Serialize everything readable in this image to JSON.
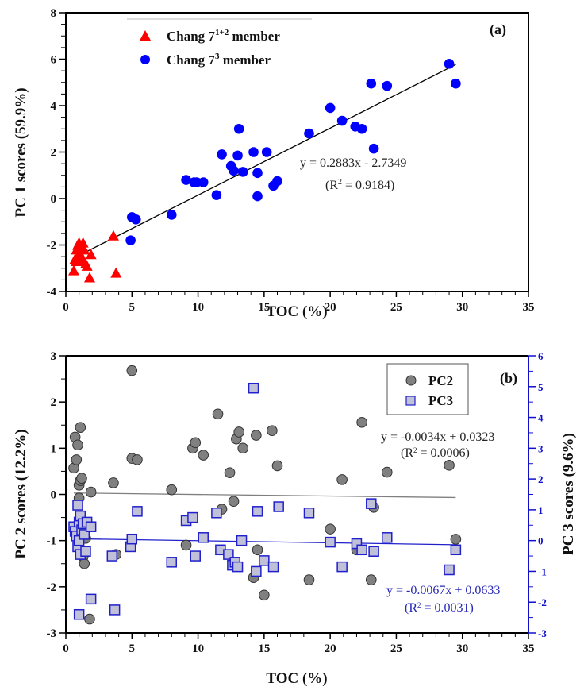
{
  "chart_data": [
    {
      "type": "scatter",
      "panel_label": "(a)",
      "xlabel": "TOC (%)",
      "ylabel": "PC 1 scores (59.9%)",
      "xlim": [
        0,
        35
      ],
      "ylim": [
        -4,
        8
      ],
      "xticks": [
        0,
        5,
        10,
        15,
        20,
        25,
        30,
        35
      ],
      "yticks": [
        -4,
        -2,
        0,
        2,
        4,
        6,
        8
      ],
      "grid": false,
      "legend_position": "top-left",
      "series": [
        {
          "name": "Chang 7",
          "name_sup": "1+2",
          "name_suffix": " member",
          "marker": "triangle",
          "color": "#ff0000",
          "points": [
            [
              0.6,
              -3.1
            ],
            [
              0.7,
              -2.6
            ],
            [
              0.8,
              -2.2
            ],
            [
              0.9,
              -2.0
            ],
            [
              1.0,
              -1.9
            ],
            [
              1.0,
              -2.4
            ],
            [
              1.1,
              -2.1
            ],
            [
              1.2,
              -2.5
            ],
            [
              1.3,
              -1.9
            ],
            [
              1.4,
              -2.2
            ],
            [
              1.5,
              -2.8
            ],
            [
              1.6,
              -2.9
            ],
            [
              1.8,
              -3.4
            ],
            [
              1.9,
              -2.4
            ],
            [
              3.6,
              -1.6
            ],
            [
              3.8,
              -3.2
            ],
            [
              0.8,
              -2.7
            ],
            [
              1.2,
              -2.7
            ]
          ]
        },
        {
          "name": "Chang 7",
          "name_sup": "3",
          "name_suffix": " member",
          "marker": "circle",
          "color": "#0000ff",
          "points": [
            [
              4.9,
              -1.8
            ],
            [
              5.0,
              -0.8
            ],
            [
              5.3,
              -0.9
            ],
            [
              8.0,
              -0.7
            ],
            [
              9.1,
              0.8
            ],
            [
              9.7,
              0.7
            ],
            [
              9.9,
              0.7
            ],
            [
              10.4,
              0.7
            ],
            [
              11.4,
              0.15
            ],
            [
              11.8,
              1.9
            ],
            [
              12.5,
              1.4
            ],
            [
              12.7,
              1.2
            ],
            [
              13.0,
              1.85
            ],
            [
              13.1,
              3.0
            ],
            [
              13.4,
              1.15
            ],
            [
              14.2,
              2.0
            ],
            [
              14.5,
              1.1
            ],
            [
              14.5,
              0.1
            ],
            [
              15.2,
              2.0
            ],
            [
              15.7,
              0.55
            ],
            [
              16.0,
              0.75
            ],
            [
              18.4,
              2.8
            ],
            [
              20.0,
              3.9
            ],
            [
              20.9,
              3.35
            ],
            [
              21.9,
              3.1
            ],
            [
              22.4,
              3.0
            ],
            [
              23.1,
              4.95
            ],
            [
              23.3,
              2.15
            ],
            [
              24.3,
              4.85
            ],
            [
              29.0,
              5.8
            ],
            [
              29.5,
              4.95
            ]
          ]
        }
      ],
      "trendline": {
        "slope": 0.2883,
        "intercept": -2.7349,
        "x_range": [
          0.6,
          29.5
        ],
        "color": "#000000"
      },
      "annotations": {
        "equation": "y = 0.2883x - 2.7349",
        "r2_prefix": "(R",
        "r2_sup": "2",
        "r2_suffix": " = 0.9184)"
      }
    },
    {
      "type": "scatter",
      "panel_label": "(b)",
      "xlabel": "TOC (%)",
      "ylabel": "PC 2 scores (12.2%)",
      "ylabel_right": "PC 3 scores (9.6%)",
      "xlim": [
        0,
        35
      ],
      "ylim": [
        -3,
        3
      ],
      "ylim_right": [
        -3,
        6
      ],
      "xticks": [
        0,
        5,
        10,
        15,
        20,
        25,
        30,
        35
      ],
      "yticks": [
        -3,
        -2,
        -1,
        0,
        1,
        2,
        3
      ],
      "yticks_right": [
        -3,
        -2,
        -1,
        0,
        1,
        2,
        3,
        4,
        5,
        6
      ],
      "grid": false,
      "legend_position": "top-right",
      "series": [
        {
          "name": "PC2",
          "axis": "left",
          "marker": "circle",
          "color": "#808080",
          "edge_color": "#333333",
          "points": [
            [
              0.6,
              0.57
            ],
            [
              0.7,
              1.24
            ],
            [
              0.8,
              0.75
            ],
            [
              0.9,
              1.07
            ],
            [
              1.0,
              0.2
            ],
            [
              1.0,
              -0.08
            ],
            [
              1.1,
              1.45
            ],
            [
              1.1,
              0.3
            ],
            [
              1.2,
              0.35
            ],
            [
              1.3,
              -1.35
            ],
            [
              1.4,
              -1.5
            ],
            [
              1.5,
              -0.95
            ],
            [
              1.8,
              -2.7
            ],
            [
              1.9,
              0.05
            ],
            [
              3.6,
              0.25
            ],
            [
              3.8,
              -1.3
            ],
            [
              5.0,
              2.68
            ],
            [
              5.0,
              0.78
            ],
            [
              5.4,
              0.75
            ],
            [
              8.0,
              0.1
            ],
            [
              9.1,
              -1.1
            ],
            [
              9.6,
              1.0
            ],
            [
              9.8,
              1.12
            ],
            [
              10.4,
              0.85
            ],
            [
              11.5,
              1.74
            ],
            [
              11.8,
              -0.32
            ],
            [
              12.4,
              0.47
            ],
            [
              12.7,
              -0.15
            ],
            [
              12.9,
              1.2
            ],
            [
              13.1,
              1.35
            ],
            [
              13.4,
              1.0
            ],
            [
              14.2,
              -1.8
            ],
            [
              14.4,
              1.28
            ],
            [
              14.5,
              -1.2
            ],
            [
              15.0,
              -2.18
            ],
            [
              15.6,
              1.38
            ],
            [
              16.0,
              0.62
            ],
            [
              18.4,
              -1.85
            ],
            [
              20.0,
              -0.75
            ],
            [
              20.9,
              0.32
            ],
            [
              22.0,
              -1.2
            ],
            [
              22.4,
              1.56
            ],
            [
              23.1,
              -1.85
            ],
            [
              23.3,
              -0.28
            ],
            [
              24.3,
              0.48
            ],
            [
              29.0,
              0.63
            ],
            [
              29.5,
              -0.97
            ]
          ]
        },
        {
          "name": "PC3",
          "axis": "right",
          "marker": "square",
          "color": "#c0c0d8",
          "edge_color": "#2020cc",
          "points": [
            [
              0.6,
              0.45
            ],
            [
              0.7,
              0.3
            ],
            [
              0.8,
              0.15
            ],
            [
              0.9,
              -0.2
            ],
            [
              0.9,
              1.15
            ],
            [
              1.0,
              0.6
            ],
            [
              1.0,
              0.0
            ],
            [
              1.1,
              0.8
            ],
            [
              1.1,
              -0.45
            ],
            [
              1.2,
              0.35
            ],
            [
              1.3,
              0.55
            ],
            [
              1.4,
              0.2
            ],
            [
              1.5,
              -0.35
            ],
            [
              1.6,
              0.6
            ],
            [
              1.0,
              -2.4
            ],
            [
              1.9,
              0.45
            ],
            [
              1.9,
              -1.9
            ],
            [
              3.5,
              -0.5
            ],
            [
              3.7,
              -2.25
            ],
            [
              4.9,
              -0.2
            ],
            [
              5.0,
              0.05
            ],
            [
              5.4,
              0.95
            ],
            [
              8.0,
              -0.7
            ],
            [
              9.1,
              0.65
            ],
            [
              9.6,
              0.75
            ],
            [
              9.8,
              -0.5
            ],
            [
              10.4,
              0.1
            ],
            [
              11.4,
              0.9
            ],
            [
              11.7,
              -0.3
            ],
            [
              12.3,
              -0.45
            ],
            [
              12.6,
              -0.8
            ],
            [
              12.8,
              -0.7
            ],
            [
              13.0,
              -0.85
            ],
            [
              13.3,
              0.0
            ],
            [
              14.2,
              4.95
            ],
            [
              14.4,
              -1.0
            ],
            [
              14.5,
              0.95
            ],
            [
              15.0,
              -0.65
            ],
            [
              15.7,
              -0.85
            ],
            [
              16.1,
              1.1
            ],
            [
              18.4,
              0.9
            ],
            [
              20.0,
              -0.05
            ],
            [
              20.9,
              -0.85
            ],
            [
              22.0,
              -0.1
            ],
            [
              22.4,
              -0.3
            ],
            [
              23.1,
              1.2
            ],
            [
              23.3,
              -0.35
            ],
            [
              24.3,
              0.1
            ],
            [
              29.0,
              -0.95
            ],
            [
              29.5,
              -0.3
            ]
          ]
        }
      ],
      "trendlines": [
        {
          "axis": "left",
          "slope": -0.0034,
          "intercept": 0.0323,
          "x_range": [
            0.6,
            29.5
          ],
          "color": "#808080"
        },
        {
          "axis": "right",
          "slope": -0.0067,
          "intercept": 0.0633,
          "x_range": [
            0.6,
            29.5
          ],
          "color": "#2020cc"
        }
      ],
      "annotations": {
        "pc2_equation": "y = -0.0034x + 0.0323",
        "pc2_r2_prefix": "(R",
        "pc2_r2_sup": "2",
        "pc2_r2_suffix": " = 0.0006)",
        "pc3_equation": "y = -0.0067x + 0.0633",
        "pc3_r2_prefix": "(R",
        "pc3_r2_sup": "2",
        "pc3_r2_suffix": " = 0.0031)"
      }
    }
  ]
}
